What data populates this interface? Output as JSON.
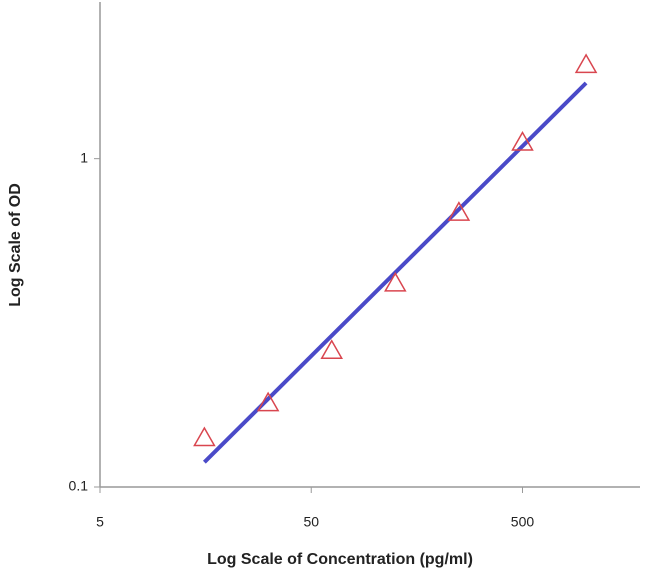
{
  "chart_data": {
    "type": "scatter",
    "xlabel": "Log Scale of Concentration (pg/ml)",
    "ylabel": "Log Scale of OD",
    "xscale": "log",
    "yscale": "log",
    "xlim": [
      5,
      1800
    ],
    "xticks": [
      5,
      50,
      500
    ],
    "ylim": [
      0.1,
      3
    ],
    "yticks": [
      0.1,
      1
    ],
    "series": [
      {
        "color": "#d9464f",
        "marker": "triangle",
        "x": [
          15.6,
          31.25,
          62.5,
          125,
          250,
          500,
          1000
        ],
        "values": [
          0.141,
          0.18,
          0.26,
          0.417,
          0.685,
          1.12,
          1.93
        ]
      }
    ],
    "fit": {
      "color": "#4a4ac8",
      "x": [
        15.6,
        1000
      ],
      "values": [
        0.119,
        1.7
      ]
    }
  }
}
